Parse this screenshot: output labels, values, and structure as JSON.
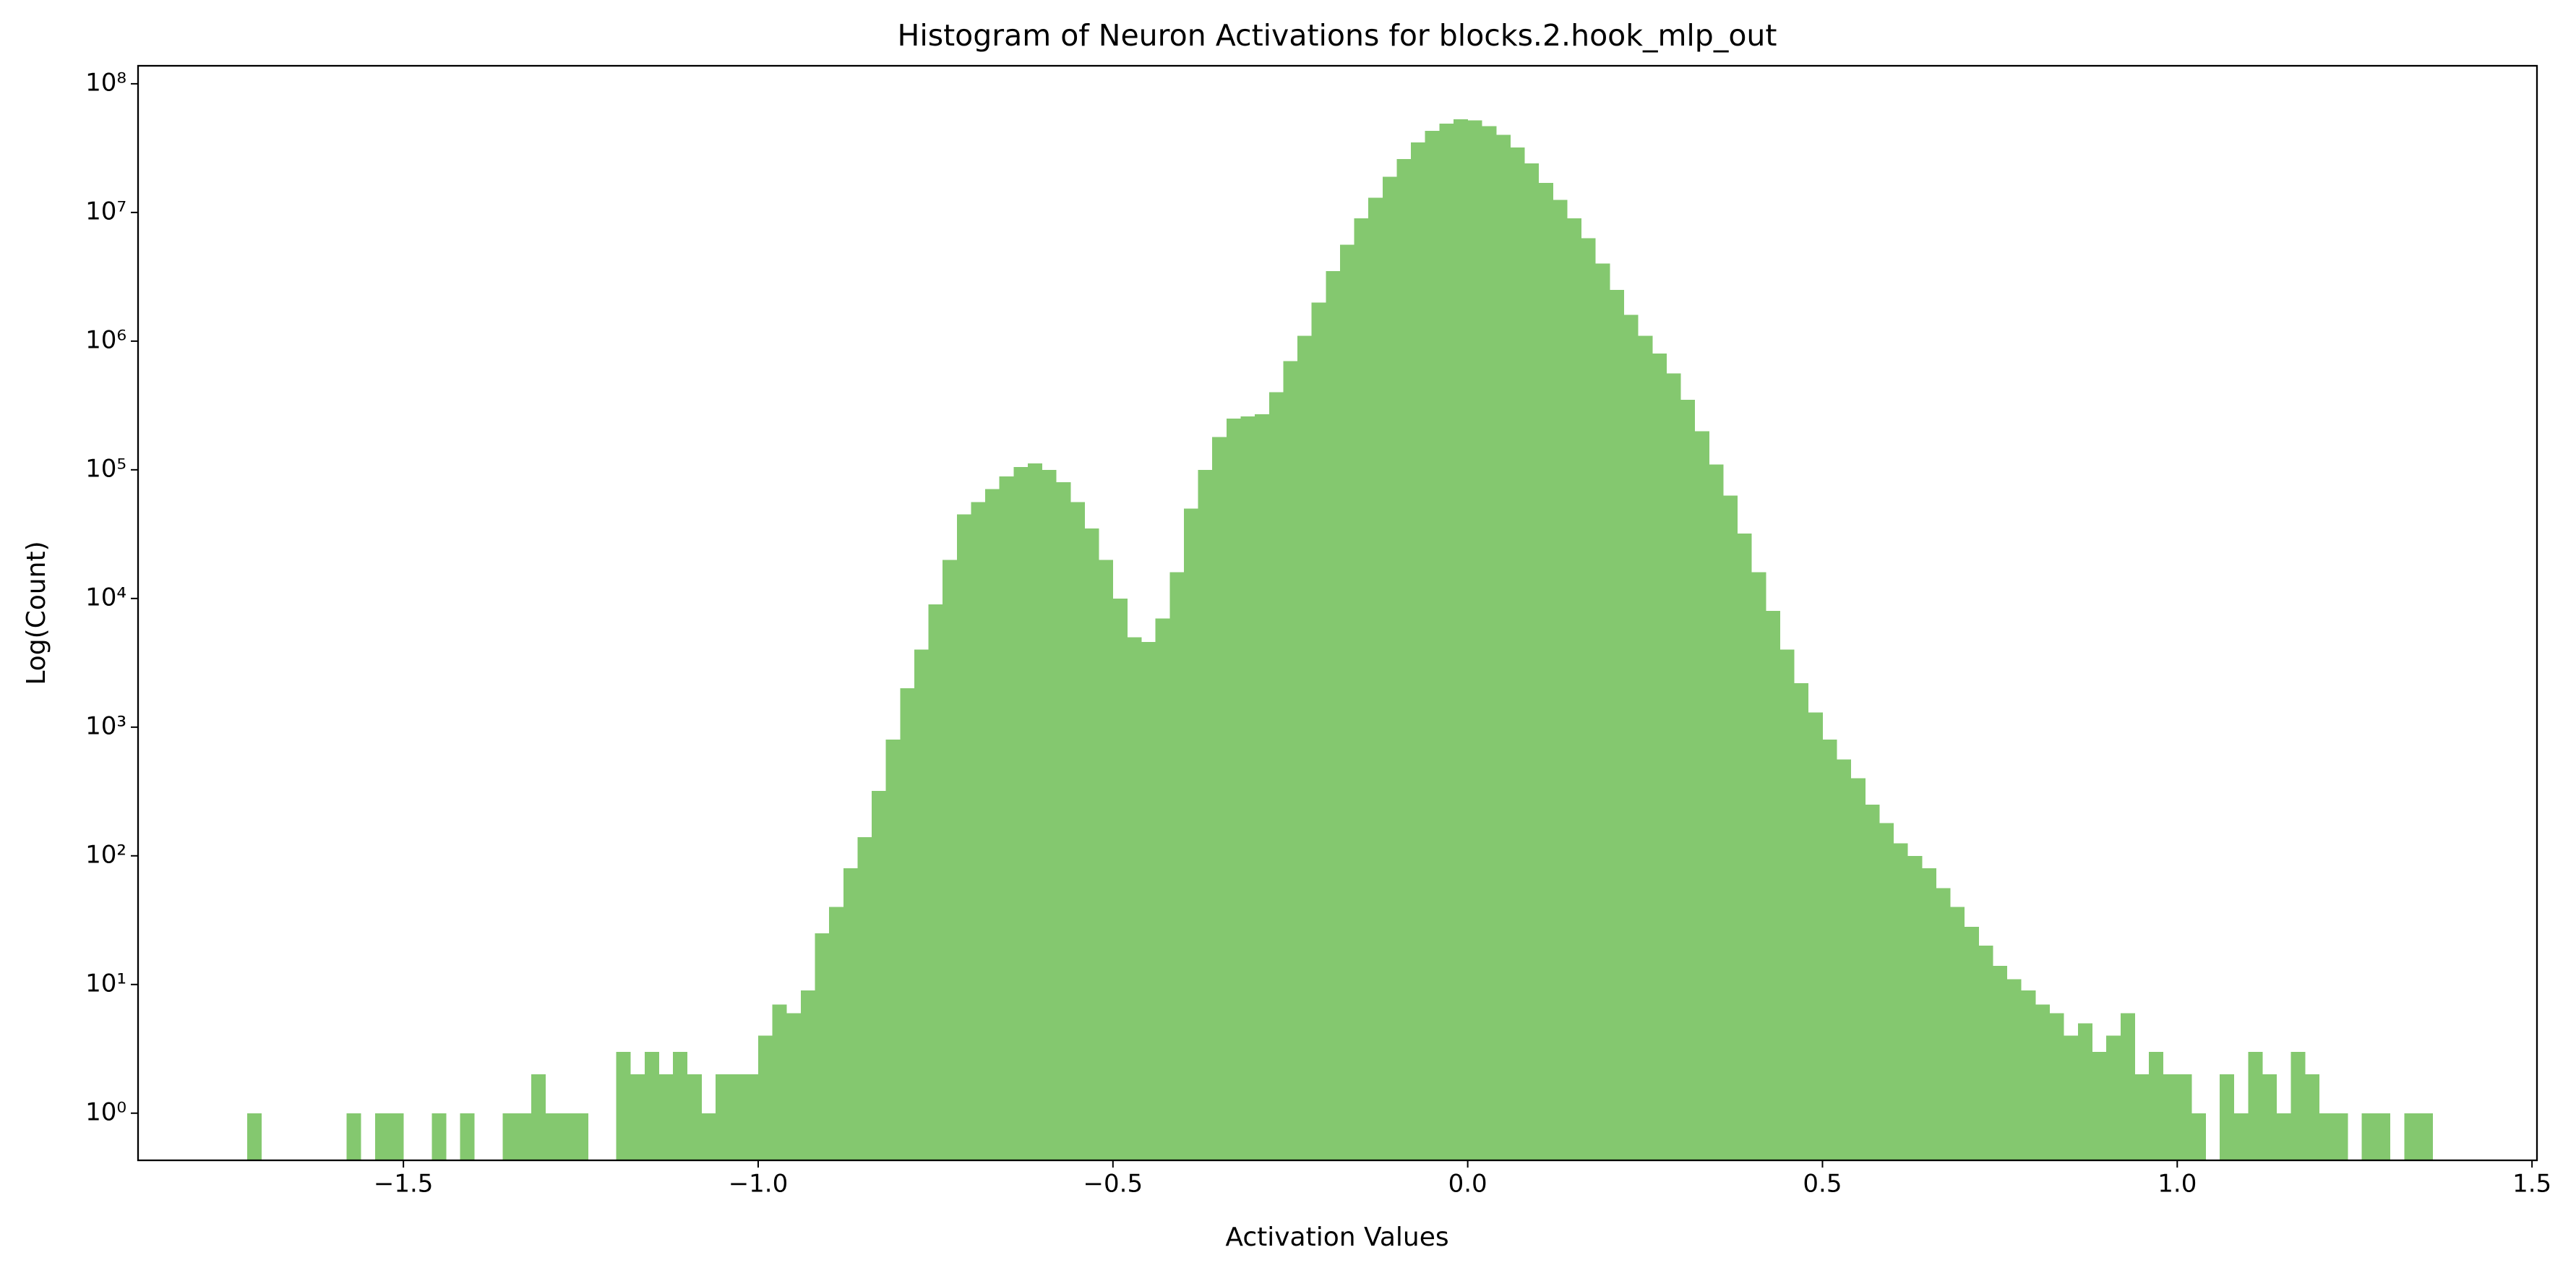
{
  "chart_data": {
    "type": "histogram",
    "title": "Histogram of Neuron Activations for blocks.2.hook_mlp_out",
    "xlabel": "Activation Values",
    "ylabel": "Log(Count)",
    "color": "#84c86f",
    "yscale": "log",
    "bins": [
      -1.72,
      -1.7,
      -1.68,
      -1.66,
      -1.64,
      -1.62,
      -1.6,
      -1.58,
      -1.56,
      -1.54,
      -1.52,
      -1.5,
      -1.48,
      -1.46,
      -1.44,
      -1.42,
      -1.4,
      -1.38,
      -1.36,
      -1.34,
      -1.32,
      -1.3,
      -1.28,
      -1.26,
      -1.24,
      -1.22,
      -1.2,
      -1.18,
      -1.16,
      -1.14,
      -1.12,
      -1.1,
      -1.08,
      -1.06,
      -1.04,
      -1.02,
      -1,
      -0.98,
      -0.96,
      -0.94,
      -0.92,
      -0.9,
      -0.88,
      -0.86,
      -0.84,
      -0.82,
      -0.8,
      -0.78,
      -0.76,
      -0.74,
      -0.72,
      -0.7,
      -0.68,
      -0.66,
      -0.64,
      -0.62,
      -0.6,
      -0.58,
      -0.56,
      -0.54,
      -0.52,
      -0.5,
      -0.48,
      -0.46,
      -0.44,
      -0.42,
      -0.4,
      -0.38,
      -0.36,
      -0.34,
      -0.32,
      -0.3,
      -0.28,
      -0.26,
      -0.24,
      -0.22,
      -0.2,
      -0.18,
      -0.16,
      -0.14,
      -0.12,
      -0.1,
      -0.08,
      -0.06,
      -0.04,
      -0.02,
      0,
      0.02,
      0.04,
      0.06,
      0.08,
      0.1,
      0.12,
      0.14,
      0.16,
      0.18,
      0.2,
      0.22,
      0.24,
      0.26,
      0.28,
      0.3,
      0.32,
      0.34,
      0.36,
      0.38,
      0.4,
      0.42,
      0.44,
      0.46,
      0.48,
      0.5,
      0.52,
      0.54,
      0.56,
      0.58,
      0.6,
      0.62,
      0.64,
      0.66,
      0.68,
      0.7,
      0.72,
      0.74,
      0.76,
      0.78,
      0.8,
      0.82,
      0.84,
      0.86,
      0.88,
      0.9,
      0.92,
      0.94,
      0.96,
      0.98,
      1,
      1.02,
      1.04,
      1.06,
      1.08,
      1.1,
      1.12,
      1.14,
      1.16,
      1.18,
      1.2,
      1.22,
      1.24,
      1.26,
      1.28,
      1.3,
      1.32,
      1.34,
      1.36
    ],
    "counts": [
      1,
      0,
      0,
      0,
      0,
      0,
      0,
      1,
      0,
      1,
      1,
      0,
      0,
      1,
      0,
      1,
      0,
      0,
      1,
      1,
      2,
      1,
      1,
      1,
      0,
      0,
      3,
      2,
      3,
      2,
      3,
      2,
      1,
      2,
      2,
      2,
      4,
      7,
      6,
      9,
      25,
      40,
      80,
      140,
      320,
      800,
      2000,
      4000,
      9000,
      20000,
      45000,
      56000,
      71000,
      89000,
      105000,
      112000,
      100000,
      80000,
      56000,
      35000,
      20000,
      10000,
      5000,
      4600,
      7000,
      16000,
      50000,
      100000,
      180000,
      250000,
      260000,
      270000,
      400000,
      700000,
      1100000,
      2000000,
      3500000,
      5600000,
      9000000,
      13000000,
      19000000,
      26000000,
      35000000,
      43000000,
      49000000,
      53000000,
      52000000,
      47000000,
      40000000,
      32000000,
      24000000,
      17000000,
      12500000,
      9000000,
      6300000,
      4000000,
      2500000,
      1600000,
      1100000,
      800000,
      560000,
      350000,
      200000,
      110000,
      63000,
      32000,
      16000,
      8000,
      4000,
      2200,
      1300,
      800,
      560,
      400,
      250,
      180,
      125,
      100,
      80,
      56,
      40,
      28,
      20,
      14,
      11,
      9,
      7,
      6,
      4,
      5,
      3,
      4,
      6,
      2,
      3,
      2,
      2,
      1,
      0,
      2,
      1,
      3,
      2,
      1,
      3,
      2,
      1,
      1,
      0,
      1,
      1,
      0,
      1,
      1
    ],
    "xlim": [
      -1.874,
      1.507
    ],
    "ylim": [
      0.43,
      138000000
    ],
    "xticks": [
      {
        "value": -1.5,
        "label": "−1.5"
      },
      {
        "value": -1.0,
        "label": "−1.0"
      },
      {
        "value": -0.5,
        "label": "−0.5"
      },
      {
        "value": 0,
        "label": "0.0"
      },
      0.5,
      {
        "value": 1,
        "label": "1.0"
      },
      1.5
    ],
    "yticks": [
      {
        "value": 1,
        "label": "10⁰"
      },
      {
        "value": 10,
        "label": "10¹"
      },
      {
        "value": 100,
        "label": "10²"
      },
      {
        "value": 1000,
        "label": "10³"
      },
      {
        "value": 10000,
        "label": "10⁴"
      },
      {
        "value": 100000,
        "label": "10⁵"
      },
      {
        "value": 1000000,
        "label": "10⁶"
      },
      {
        "value": 10000000,
        "label": "10⁷"
      },
      {
        "value": 100000000,
        "label": "10⁸"
      }
    ]
  }
}
